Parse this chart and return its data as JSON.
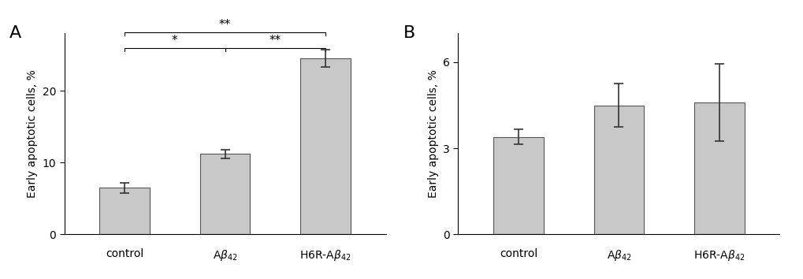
{
  "panel_A": {
    "label": "A",
    "values": [
      6.5,
      11.2,
      24.5
    ],
    "errors": [
      0.7,
      0.6,
      1.2
    ],
    "ylim": [
      0,
      28
    ],
    "yticks": [
      0,
      10,
      20
    ],
    "ylabel": "Early apoptotic cells, %"
  },
  "panel_B": {
    "label": "B",
    "values": [
      3.4,
      4.5,
      4.6
    ],
    "errors": [
      0.25,
      0.75,
      1.35
    ],
    "ylim": [
      0,
      7
    ],
    "yticks": [
      0,
      3,
      6
    ],
    "ylabel": "Early apoptotic cells, %"
  },
  "categories": [
    "control",
    "Aβ_{42}",
    "H6R-Aβ_{42}"
  ],
  "figsize": [
    10.2,
    3.54
  ],
  "dpi": 100,
  "background_color": "#ffffff",
  "bar_color": "#c8c8c8",
  "bar_edgecolor": "#555555",
  "bar_width": 0.5,
  "elinewidth": 1.2,
  "ecapsize": 4,
  "tick_fontsize": 10,
  "ylabel_fontsize": 10,
  "label_fontsize": 16
}
